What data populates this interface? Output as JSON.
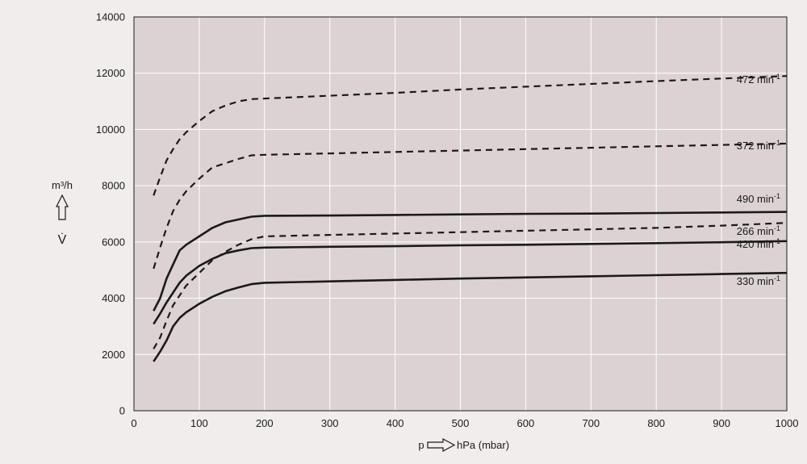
{
  "chart_data": {
    "type": "line",
    "xlabel": {
      "symbol": "p",
      "unit": "hPa (mbar)"
    },
    "ylabel": {
      "unit": "m³/h",
      "symbol": "V̇"
    },
    "xlim": [
      0,
      1000
    ],
    "ylim": [
      0,
      14000
    ],
    "xticks": [
      0,
      100,
      200,
      300,
      400,
      500,
      600,
      700,
      800,
      900,
      1000
    ],
    "yticks": [
      0,
      2000,
      4000,
      6000,
      8000,
      10000,
      12000,
      14000
    ],
    "grid": true,
    "colors": {
      "background": "#f1edec",
      "plot_area": "#dcd2d4",
      "grid": "#ffffff",
      "line": "#1a1a1a"
    },
    "series": [
      {
        "name": "472 min",
        "superscript": "-1",
        "style": "dashed",
        "points": [
          [
            30,
            7650
          ],
          [
            40,
            8300
          ],
          [
            50,
            8900
          ],
          [
            60,
            9300
          ],
          [
            70,
            9650
          ],
          [
            80,
            9900
          ],
          [
            100,
            10300
          ],
          [
            120,
            10650
          ],
          [
            140,
            10850
          ],
          [
            160,
            11000
          ],
          [
            180,
            11080
          ],
          [
            200,
            11100
          ],
          [
            300,
            11200
          ],
          [
            400,
            11300
          ],
          [
            500,
            11420
          ],
          [
            600,
            11520
          ],
          [
            700,
            11620
          ],
          [
            800,
            11720
          ],
          [
            900,
            11810
          ],
          [
            1000,
            11900
          ]
        ]
      },
      {
        "name": "372 min",
        "superscript": "-1",
        "style": "dashed",
        "points": [
          [
            30,
            5050
          ],
          [
            40,
            5800
          ],
          [
            50,
            6500
          ],
          [
            60,
            7100
          ],
          [
            70,
            7500
          ],
          [
            80,
            7800
          ],
          [
            100,
            8250
          ],
          [
            120,
            8650
          ],
          [
            140,
            8800
          ],
          [
            160,
            8950
          ],
          [
            180,
            9080
          ],
          [
            200,
            9100
          ],
          [
            300,
            9150
          ],
          [
            400,
            9200
          ],
          [
            500,
            9250
          ],
          [
            600,
            9300
          ],
          [
            700,
            9350
          ],
          [
            800,
            9400
          ],
          [
            900,
            9450
          ],
          [
            1000,
            9500
          ]
        ]
      },
      {
        "name": "490 min",
        "superscript": "-1",
        "style": "solid",
        "points": [
          [
            30,
            3550
          ],
          [
            40,
            4000
          ],
          [
            50,
            4700
          ],
          [
            60,
            5200
          ],
          [
            70,
            5700
          ],
          [
            80,
            5900
          ],
          [
            100,
            6200
          ],
          [
            120,
            6500
          ],
          [
            140,
            6700
          ],
          [
            160,
            6800
          ],
          [
            180,
            6900
          ],
          [
            200,
            6930
          ],
          [
            300,
            6940
          ],
          [
            400,
            6960
          ],
          [
            500,
            6980
          ],
          [
            600,
            7000
          ],
          [
            700,
            7010
          ],
          [
            800,
            7030
          ],
          [
            900,
            7050
          ],
          [
            1000,
            7070
          ]
        ]
      },
      {
        "name": "266 min",
        "superscript": "-1",
        "style": "dashed",
        "points": [
          [
            30,
            2200
          ],
          [
            40,
            2600
          ],
          [
            50,
            3200
          ],
          [
            60,
            3750
          ],
          [
            70,
            4100
          ],
          [
            80,
            4450
          ],
          [
            100,
            4900
          ],
          [
            120,
            5350
          ],
          [
            140,
            5650
          ],
          [
            160,
            5900
          ],
          [
            180,
            6100
          ],
          [
            200,
            6200
          ],
          [
            300,
            6250
          ],
          [
            400,
            6300
          ],
          [
            500,
            6350
          ],
          [
            600,
            6400
          ],
          [
            700,
            6450
          ],
          [
            800,
            6500
          ],
          [
            900,
            6580
          ],
          [
            1000,
            6680
          ]
        ]
      },
      {
        "name": "420 min",
        "superscript": "-1",
        "style": "solid",
        "points": [
          [
            30,
            3080
          ],
          [
            40,
            3450
          ],
          [
            50,
            3850
          ],
          [
            60,
            4200
          ],
          [
            70,
            4550
          ],
          [
            80,
            4800
          ],
          [
            100,
            5150
          ],
          [
            120,
            5400
          ],
          [
            140,
            5600
          ],
          [
            160,
            5700
          ],
          [
            180,
            5780
          ],
          [
            200,
            5800
          ],
          [
            300,
            5830
          ],
          [
            400,
            5850
          ],
          [
            500,
            5880
          ],
          [
            600,
            5900
          ],
          [
            700,
            5930
          ],
          [
            800,
            5960
          ],
          [
            900,
            5990
          ],
          [
            1000,
            6030
          ]
        ]
      },
      {
        "name": "330 min",
        "superscript": "-1",
        "style": "solid",
        "points": [
          [
            30,
            1750
          ],
          [
            40,
            2100
          ],
          [
            50,
            2500
          ],
          [
            60,
            3000
          ],
          [
            70,
            3300
          ],
          [
            80,
            3500
          ],
          [
            100,
            3800
          ],
          [
            120,
            4050
          ],
          [
            140,
            4250
          ],
          [
            160,
            4380
          ],
          [
            180,
            4500
          ],
          [
            200,
            4550
          ],
          [
            300,
            4600
          ],
          [
            400,
            4650
          ],
          [
            500,
            4700
          ],
          [
            600,
            4740
          ],
          [
            700,
            4780
          ],
          [
            800,
            4820
          ],
          [
            900,
            4860
          ],
          [
            1000,
            4900
          ]
        ]
      }
    ],
    "annotations": [
      {
        "series": 0,
        "label_y": 11650
      },
      {
        "series": 1,
        "label_y": 9300
      },
      {
        "series": 2,
        "label_y": 7400
      },
      {
        "series": 3,
        "label_y": 6250
      },
      {
        "series": 4,
        "label_y": 5800
      },
      {
        "series": 5,
        "label_y": 4470
      }
    ]
  }
}
